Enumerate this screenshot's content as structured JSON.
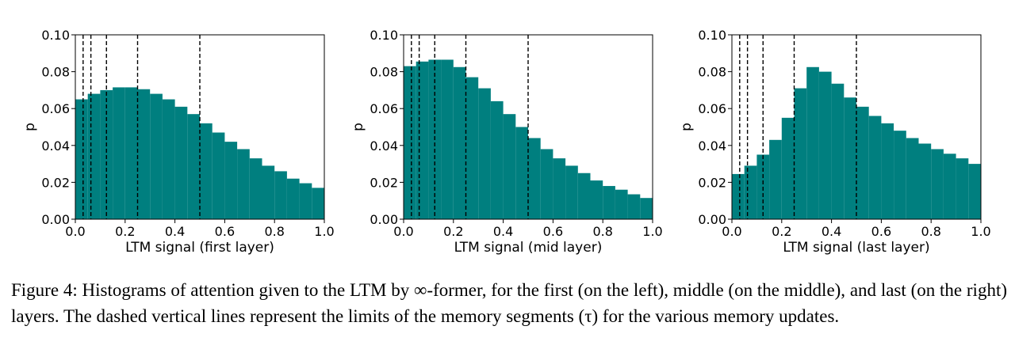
{
  "chart_data": [
    {
      "type": "bar",
      "xlabel": "LTM signal (first layer)",
      "ylabel": "p",
      "xlim": [
        0,
        1
      ],
      "ylim": [
        0,
        0.1
      ],
      "xticks": [
        "0.0",
        "0.2",
        "0.4",
        "0.6",
        "0.8",
        "1.0"
      ],
      "yticks": [
        "0.00",
        "0.02",
        "0.04",
        "0.06",
        "0.08",
        "0.10"
      ],
      "bin_width": 0.05,
      "values": [
        0.065,
        0.068,
        0.07,
        0.0715,
        0.0715,
        0.0705,
        0.068,
        0.065,
        0.061,
        0.057,
        0.052,
        0.047,
        0.042,
        0.038,
        0.033,
        0.029,
        0.026,
        0.022,
        0.0195,
        0.017
      ],
      "segment_limits": [
        0.03125,
        0.0625,
        0.125,
        0.25,
        0.5
      ]
    },
    {
      "type": "bar",
      "xlabel": "LTM signal (mid layer)",
      "ylabel": "p",
      "xlim": [
        0,
        1
      ],
      "ylim": [
        0,
        0.1
      ],
      "xticks": [
        "0.0",
        "0.2",
        "0.4",
        "0.6",
        "0.8",
        "1.0"
      ],
      "yticks": [
        "0.00",
        "0.02",
        "0.04",
        "0.06",
        "0.08",
        "0.10"
      ],
      "bin_width": 0.05,
      "values": [
        0.083,
        0.0855,
        0.0865,
        0.0865,
        0.0825,
        0.077,
        0.071,
        0.064,
        0.057,
        0.05,
        0.044,
        0.038,
        0.033,
        0.029,
        0.025,
        0.021,
        0.018,
        0.016,
        0.0135,
        0.0115
      ],
      "segment_limits": [
        0.03125,
        0.0625,
        0.125,
        0.25,
        0.5
      ]
    },
    {
      "type": "bar",
      "xlabel": "LTM signal (last layer)",
      "ylabel": "p",
      "xlim": [
        0,
        1
      ],
      "ylim": [
        0,
        0.1
      ],
      "xticks": [
        "0.0",
        "0.2",
        "0.4",
        "0.6",
        "0.8",
        "1.0"
      ],
      "yticks": [
        "0.00",
        "0.02",
        "0.04",
        "0.06",
        "0.08",
        "0.10"
      ],
      "bin_width": 0.05,
      "values": [
        0.0245,
        0.029,
        0.035,
        0.043,
        0.055,
        0.071,
        0.0825,
        0.08,
        0.0735,
        0.066,
        0.061,
        0.056,
        0.052,
        0.048,
        0.044,
        0.041,
        0.038,
        0.0355,
        0.033,
        0.03
      ],
      "segment_limits": [
        0.03125,
        0.0625,
        0.125,
        0.25,
        0.5
      ]
    }
  ],
  "caption": {
    "text": "Figure 4: Histograms of attention given to the LTM by ∞-former, for the first (on the left), middle (on the middle), and last (on the right) layers. The dashed vertical lines represent the limits of the memory segments (τ) for the various memory updates."
  },
  "colors": {
    "bar": "#007f7f",
    "axis": "#000000"
  }
}
